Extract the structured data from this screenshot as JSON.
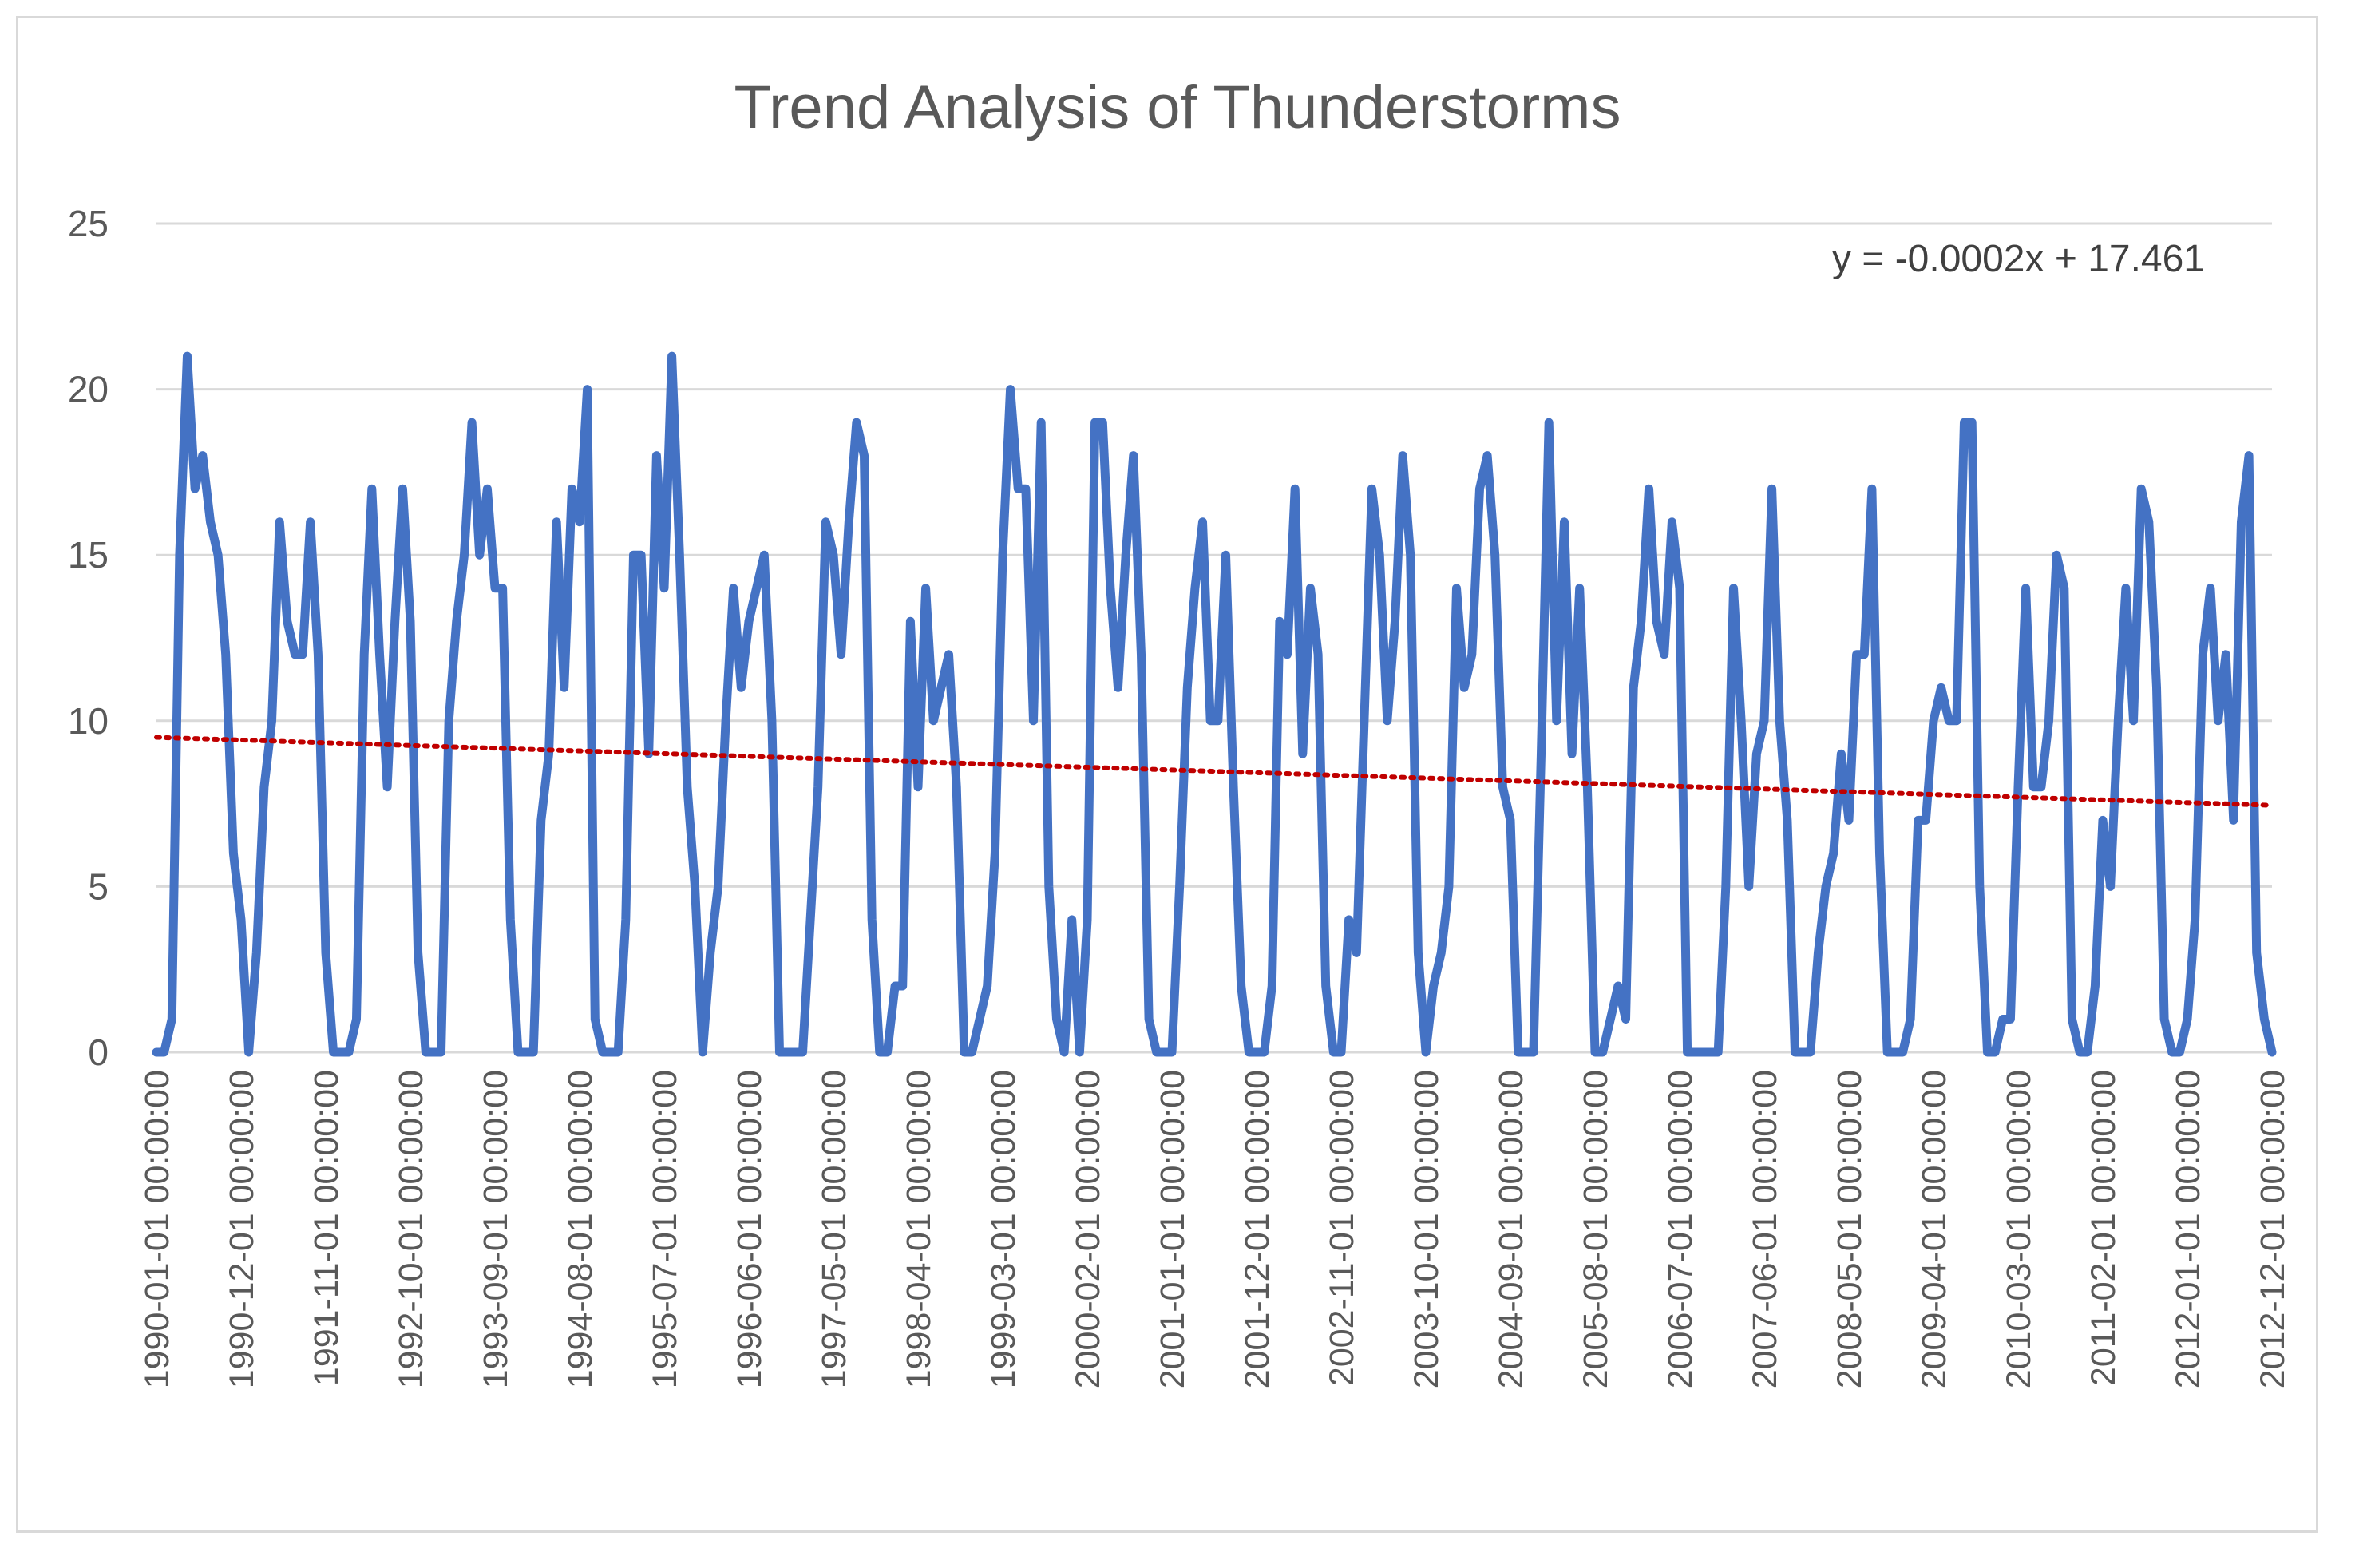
{
  "chart_data": {
    "type": "line",
    "title": "Trend Analysis of Thunderstorms",
    "xlabel": "",
    "ylabel": "",
    "ylim": [
      0,
      25
    ],
    "yticks": [
      0,
      5,
      10,
      15,
      20,
      25
    ],
    "grid": true,
    "legend": "none",
    "colors": {
      "series": "#4472c4",
      "trendline": "#c00000",
      "grid": "#d9d9d9",
      "text": "#595959"
    },
    "x_tick_labels": [
      "1990-01-01 00:00:00",
      "1990-12-01 00:00:00",
      "1991-11-01 00:00:00",
      "1992-10-01 00:00:00",
      "1993-09-01 00:00:00",
      "1994-08-01 00:00:00",
      "1995-07-01 00:00:00",
      "1996-06-01 00:00:00",
      "1997-05-01 00:00:00",
      "1998-04-01 00:00:00",
      "1999-03-01 00:00:00",
      "2000-02-01 00:00:00",
      "2001-01-01 00:00:00",
      "2001-12-01 00:00:00",
      "2002-11-01 00:00:00",
      "2003-10-01 00:00:00",
      "2004-09-01 00:00:00",
      "2005-08-01 00:00:00",
      "2006-07-01 00:00:00",
      "2007-06-01 00:00:00",
      "2008-05-01 00:00:00",
      "2009-04-01 00:00:00",
      "2010-03-01 00:00:00",
      "2011-02-01 00:00:00",
      "2012-01-01 00:00:00",
      "2012-12-01 00:00:00"
    ],
    "x_start": "1990-01-01 00:00:00",
    "x_end": "2012-12-01 00:00:00",
    "x_step": "monthly",
    "series": [
      {
        "values": [
          0,
          0,
          1,
          15,
          21,
          17,
          18,
          16,
          15,
          12,
          6,
          4,
          0,
          3,
          8,
          10,
          16,
          13,
          12,
          12,
          16,
          12,
          3,
          0,
          0,
          0,
          1,
          12,
          17,
          12,
          8,
          13,
          17,
          13,
          3,
          0,
          0,
          0,
          10,
          13,
          15,
          19,
          15,
          17,
          14,
          14,
          4,
          0,
          0,
          0,
          7,
          9,
          16,
          11,
          17,
          16,
          20,
          1,
          0,
          0,
          0,
          4,
          15,
          15,
          9,
          18,
          14,
          21,
          15,
          8,
          5,
          0,
          3,
          5,
          10,
          14,
          11,
          13,
          14,
          15,
          10,
          0,
          0,
          0,
          0,
          4,
          8,
          16,
          15,
          12,
          16,
          19,
          18,
          4,
          0,
          0,
          2,
          2,
          13,
          8,
          14,
          10,
          11,
          12,
          8,
          0,
          0,
          1,
          2,
          6,
          15,
          20,
          17,
          17,
          10,
          19,
          5,
          1,
          0,
          4,
          0,
          4,
          19,
          19,
          14,
          11,
          15,
          18,
          12,
          1,
          0,
          0,
          0,
          5,
          11,
          14,
          16,
          10,
          10,
          15,
          8,
          2,
          0,
          0,
          0,
          2,
          13,
          12,
          17,
          9,
          14,
          12,
          2,
          0,
          0,
          4,
          3,
          10,
          17,
          15,
          10,
          13,
          18,
          15,
          3,
          0,
          2,
          3,
          5,
          14,
          11,
          12,
          17,
          18,
          15,
          8,
          7,
          0,
          0,
          0,
          9,
          19,
          10,
          16,
          9,
          14,
          8,
          0,
          0,
          1,
          2,
          1,
          11,
          13,
          17,
          13,
          12,
          16,
          14,
          0,
          0,
          0,
          0,
          0,
          5,
          14,
          10,
          5,
          9,
          10,
          17,
          10,
          7,
          0,
          0,
          0,
          3,
          5,
          6,
          9,
          7,
          12,
          12,
          17,
          6,
          0,
          0,
          0,
          1,
          7,
          7,
          10,
          11,
          10,
          10,
          19,
          19,
          5,
          0,
          0,
          1,
          1,
          8,
          14,
          8,
          8,
          10,
          15,
          14,
          1,
          0,
          0,
          2,
          7,
          5,
          10,
          14,
          10,
          17,
          16,
          11,
          1,
          0,
          0,
          1,
          4,
          12,
          14,
          10,
          12,
          7,
          16,
          18,
          3,
          1,
          0
        ]
      }
    ],
    "trendline": {
      "type": "linear",
      "style": "dotted",
      "equation": "y = -0.0002x + 17.461",
      "start_value": 9.5,
      "end_value": 7.45
    }
  }
}
